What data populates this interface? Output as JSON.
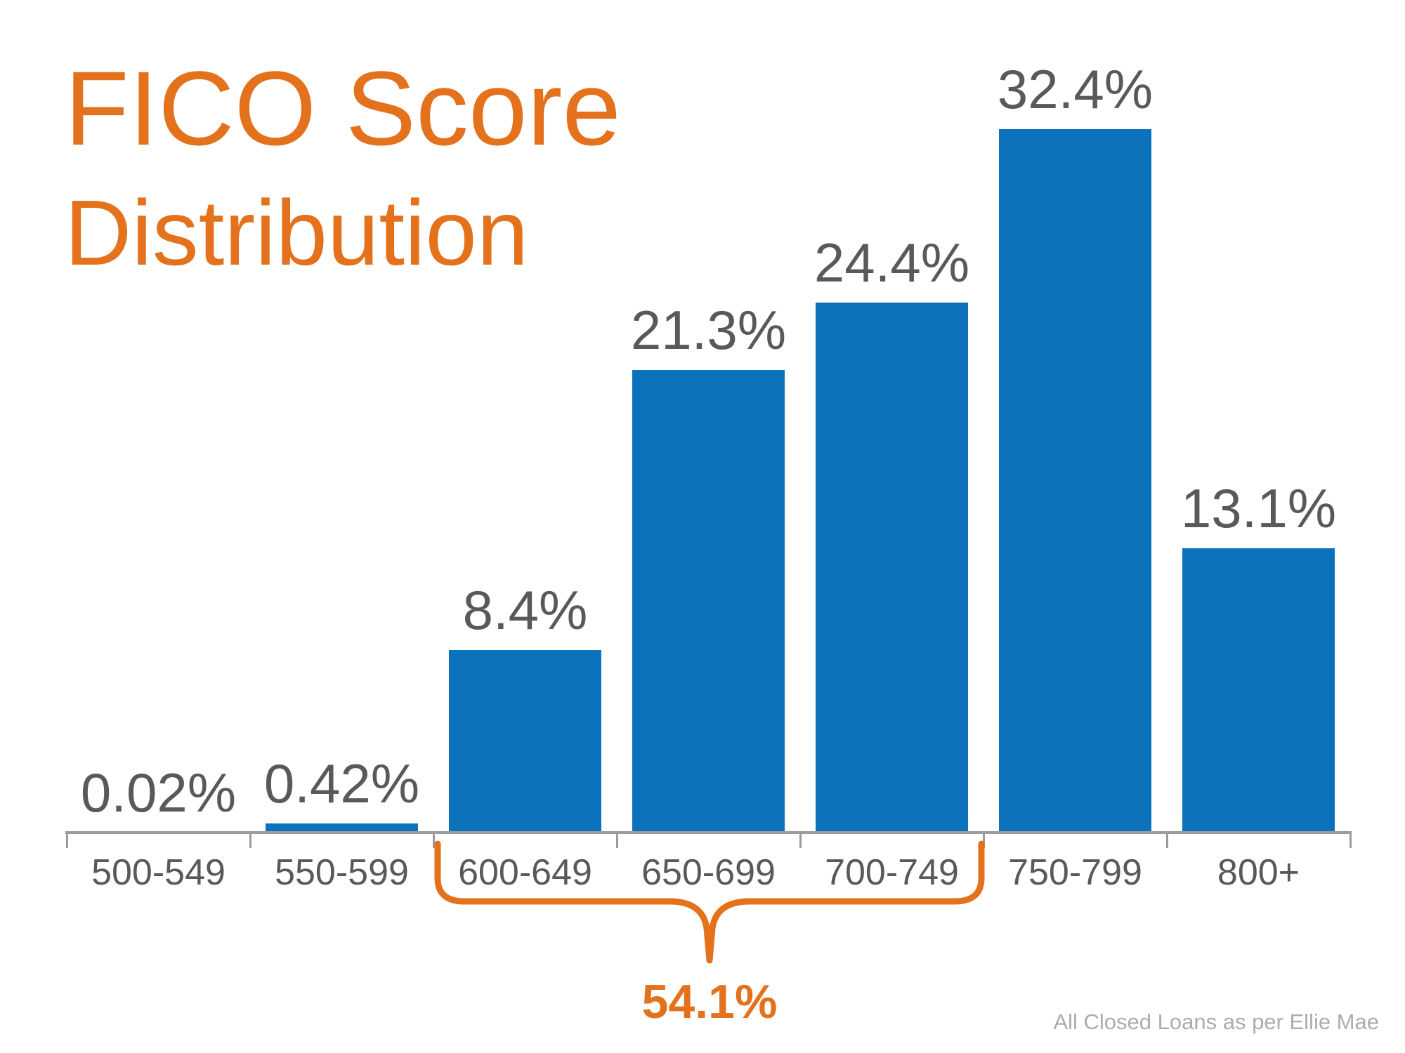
{
  "title": {
    "line1": "FICO Score",
    "line2": "Distribution"
  },
  "source_note": "All Closed Loans as per Ellie Mae",
  "colors": {
    "orange": "#E4711C",
    "blue": "#0D72BC",
    "label_gray": "#595959",
    "axis_gray": "#9C9C9C",
    "source_gray": "#ACACAC"
  },
  "chart_data": {
    "type": "bar",
    "title": "FICO Score Distribution",
    "categories": [
      "500-549",
      "550-599",
      "600-649",
      "650-699",
      "700-749",
      "750-799",
      "800+"
    ],
    "values": [
      0.02,
      0.42,
      8.4,
      21.3,
      24.4,
      32.4,
      13.1
    ],
    "value_labels": [
      "0.02%",
      "0.42%",
      "8.4%",
      "21.3%",
      "24.4%",
      "32.4%",
      "13.1%"
    ],
    "unit": "%",
    "grid": false,
    "legend": "none",
    "y_axis_shown": false,
    "value_labels_shown": true,
    "bracket": {
      "label": "54.1%",
      "from_category": "600-649",
      "to_category": "700-749"
    }
  }
}
